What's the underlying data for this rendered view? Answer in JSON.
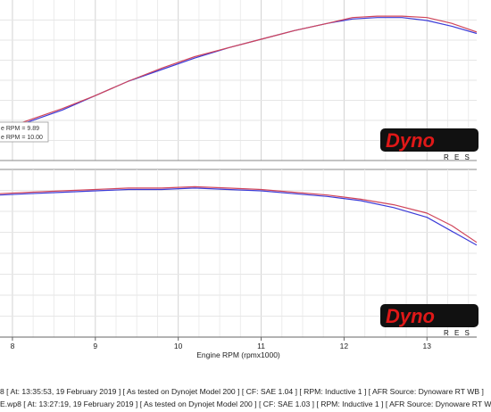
{
  "chart_data": [
    {
      "type": "line",
      "panel": "upper",
      "xlim": [
        7.85,
        13.6
      ],
      "ylim": [
        0,
        1
      ],
      "grid": true,
      "legend_position": "lower-left",
      "legend_entries": [
        "e RPM = 9.89",
        "e RPM = 10.00"
      ],
      "series": [
        {
          "color": "#3b3bd8",
          "x": [
            7.85,
            8.2,
            8.6,
            9.0,
            9.4,
            9.8,
            10.2,
            10.6,
            11.0,
            11.4,
            11.8,
            12.1,
            12.4,
            12.7,
            13.0,
            13.3,
            13.6
          ],
          "y": [
            0.16,
            0.22,
            0.3,
            0.4,
            0.5,
            0.58,
            0.66,
            0.73,
            0.79,
            0.85,
            0.9,
            0.93,
            0.94,
            0.94,
            0.92,
            0.88,
            0.83
          ]
        },
        {
          "color": "#d0455a",
          "x": [
            7.85,
            8.2,
            8.6,
            9.0,
            9.4,
            9.8,
            10.2,
            10.6,
            11.0,
            11.4,
            11.8,
            12.1,
            12.4,
            12.7,
            13.0,
            13.3,
            13.6
          ],
          "y": [
            0.16,
            0.23,
            0.31,
            0.4,
            0.5,
            0.59,
            0.67,
            0.73,
            0.79,
            0.85,
            0.9,
            0.94,
            0.95,
            0.95,
            0.94,
            0.9,
            0.84
          ]
        }
      ]
    },
    {
      "type": "line",
      "panel": "lower",
      "xlabel": "Engine RPM (rpmx1000)",
      "xticks": [
        8,
        9,
        10,
        11,
        12,
        13
      ],
      "xlim": [
        7.85,
        13.6
      ],
      "ylim": [
        0,
        1
      ],
      "grid": true,
      "series": [
        {
          "color": "#3b3bd8",
          "x": [
            7.85,
            8.2,
            8.6,
            9.0,
            9.4,
            9.8,
            10.2,
            10.6,
            11.0,
            11.4,
            11.8,
            12.2,
            12.6,
            13.0,
            13.3,
            13.6
          ],
          "y": [
            0.88,
            0.89,
            0.9,
            0.91,
            0.92,
            0.92,
            0.93,
            0.92,
            0.91,
            0.89,
            0.87,
            0.84,
            0.79,
            0.72,
            0.62,
            0.52
          ]
        },
        {
          "color": "#d0455a",
          "x": [
            7.85,
            8.2,
            8.6,
            9.0,
            9.4,
            9.8,
            10.2,
            10.6,
            11.0,
            11.4,
            11.8,
            12.2,
            12.6,
            13.0,
            13.3,
            13.6
          ],
          "y": [
            0.89,
            0.9,
            0.91,
            0.92,
            0.93,
            0.93,
            0.94,
            0.93,
            0.92,
            0.9,
            0.88,
            0.85,
            0.81,
            0.75,
            0.66,
            0.54
          ]
        }
      ]
    }
  ],
  "logo": {
    "text": "Dyno",
    "subtext": "R E S"
  },
  "footer_lines": [
    "8 [ At: 13:35:53, 19 February 2019 ] [ As tested on Dynojet Model 200 ] [ CF: SAE 1.04 ] [ RPM: Inductive 1 ] [ AFR Source: Dynoware RT WB ]",
    "E.wp8 [ At: 13:27:19, 19 February 2019 ] [ As tested on Dynojet Model 200 ] [ CF: SAE 1.03 ] [ RPM: Inductive 1 ] [ AFR Source: Dynoware RT W"
  ]
}
